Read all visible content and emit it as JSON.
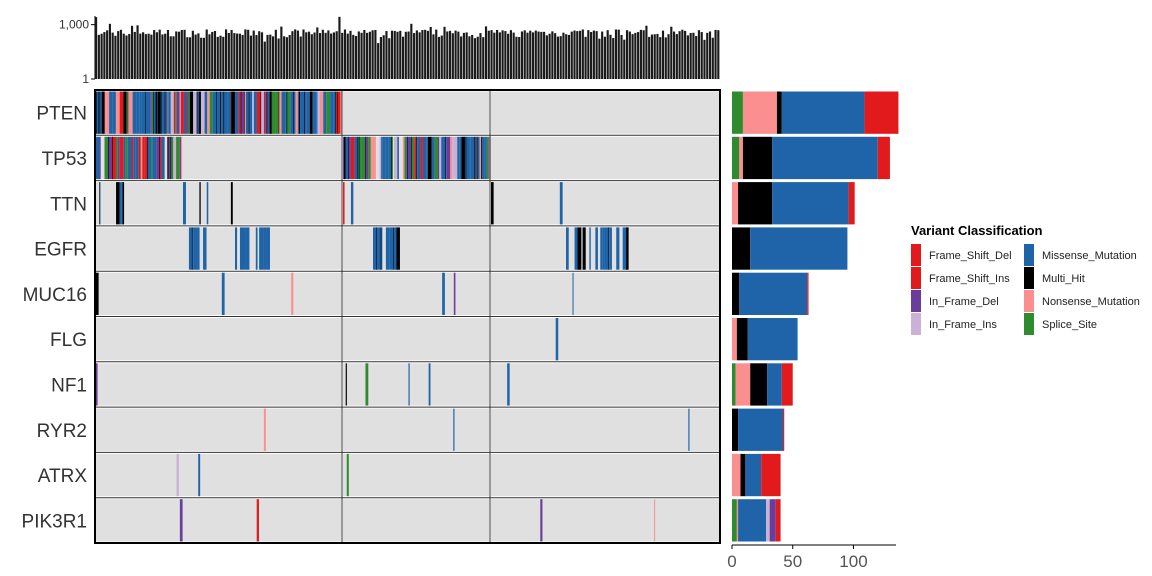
{
  "chart_data": [
    {
      "type": "bar",
      "role": "tmb-top-bars",
      "y_scale": "log10",
      "ylim": [
        1,
        3000
      ],
      "yticks": [
        "1",
        "1,000"
      ],
      "n_samples": 226
    },
    {
      "type": "heatmap",
      "role": "oncoplot",
      "genes": [
        "PTEN",
        "TP53",
        "TTN",
        "EGFR",
        "MUC16",
        "FLG",
        "NF1",
        "RYR2",
        "ATRX",
        "PIK3R1"
      ],
      "groups": 3,
      "background_color": "#e0e0e0"
    },
    {
      "type": "bar",
      "orientation": "horizontal",
      "stacked": true,
      "role": "mutation-counts",
      "categories": [
        "PTEN",
        "TP53",
        "TTN",
        "EGFR",
        "MUC16",
        "FLG",
        "NF1",
        "RYR2",
        "ATRX",
        "PIK3R1"
      ],
      "xlim": [
        0,
        135
      ],
      "xticks": [
        0,
        50,
        100
      ],
      "series": [
        {
          "name": "Splice_Site",
          "values": [
            9,
            6,
            0,
            0,
            0,
            0,
            3,
            0,
            0,
            4
          ]
        },
        {
          "name": "Frame_Shift_Ins",
          "values": [
            0,
            0,
            0,
            0,
            0,
            0,
            0,
            0,
            0,
            0
          ]
        },
        {
          "name": "Nonsense_Mutation",
          "values": [
            28,
            3,
            5,
            0,
            0,
            4,
            12,
            0,
            7,
            1
          ]
        },
        {
          "name": "Multi_Hit",
          "values": [
            4,
            24,
            28,
            15,
            6,
            9,
            14,
            5,
            4,
            0
          ]
        },
        {
          "name": "Missense_Mutation",
          "values": [
            68,
            87,
            63,
            80,
            56,
            41,
            12,
            37,
            13,
            23
          ]
        },
        {
          "name": "In_Frame_Ins",
          "values": [
            0,
            0,
            0,
            0,
            0,
            0,
            0,
            0,
            0,
            3
          ]
        },
        {
          "name": "In_Frame_Del",
          "values": [
            0,
            0,
            0,
            0,
            0,
            0,
            0,
            0,
            0,
            5
          ]
        },
        {
          "name": "Frame_Shift_Del",
          "values": [
            28,
            10,
            5,
            0,
            1,
            0,
            9,
            1,
            16,
            4
          ]
        }
      ]
    }
  ],
  "legend": {
    "title": "Variant Classification",
    "items": [
      {
        "name": "Frame_Shift_Del",
        "color": "#e31a1c"
      },
      {
        "name": "Frame_Shift_Ins",
        "color": "#e31a1c"
      },
      {
        "name": "In_Frame_Del",
        "color": "#6a3d9a"
      },
      {
        "name": "In_Frame_Ins",
        "color": "#cab2d6"
      },
      {
        "name": "Missense_Mutation",
        "color": "#1f63a8"
      },
      {
        "name": "Multi_Hit",
        "color": "#000000"
      },
      {
        "name": "Nonsense_Mutation",
        "color": "#fb8e8e"
      },
      {
        "name": "Splice_Site",
        "color": "#2e8b2e"
      }
    ]
  }
}
